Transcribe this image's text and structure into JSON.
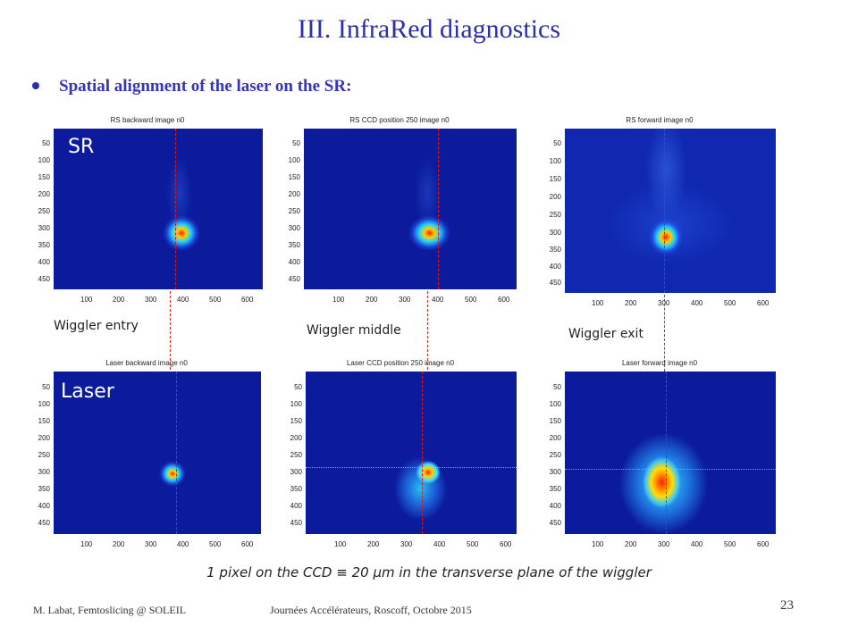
{
  "slide": {
    "title": "III. InfraRed diagnostics",
    "bullet": "Spatial alignment of the laser on the SR:",
    "footnote": "1 pixel on the CCD  ≡ 20 µm in the transverse plane of the wiggler",
    "footer_left": "M. Labat, Femtoslicing @ SOLEIL",
    "footer_mid": "Journées Accélérateurs, Roscoff, Octobre 2015",
    "page_number": "23"
  },
  "row_labels": {
    "sr": "SR",
    "laser": "Laser"
  },
  "captions": {
    "entry": "Wiggler entry",
    "middle": "Wiggler middle",
    "exit": "Wiggler exit"
  },
  "panels": {
    "sr_entry": {
      "title": "RS backward image n0"
    },
    "sr_middle": {
      "title": "RS CCD position 250 image n0"
    },
    "sr_exit": {
      "title": "RS forward image n0"
    },
    "laser_entry": {
      "title": "Laser backward image n0"
    },
    "laser_middle": {
      "title": "Laser CCD position 250 image n0"
    },
    "laser_exit": {
      "title": "Laser forward image n0"
    }
  },
  "axes": {
    "y_ticks": [
      "50",
      "100",
      "150",
      "200",
      "250",
      "300",
      "350",
      "400",
      "450"
    ],
    "x_ticks": [
      "100",
      "200",
      "300",
      "400",
      "500",
      "600"
    ]
  },
  "colors": {
    "title": "#2e2ea6",
    "plot_background": "#0a1a9a",
    "beam_center": "#ff2000",
    "alignment_line": "#e11111"
  }
}
